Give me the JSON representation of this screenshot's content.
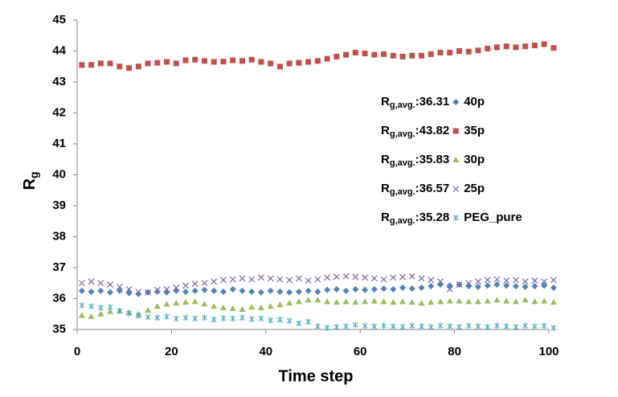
{
  "chart_data": {
    "type": "scatter",
    "xlabel": "Time step",
    "ylabel": {
      "main": "R",
      "sub": "g"
    },
    "legend_prefix": {
      "main": "R",
      "sub": "g,avg.",
      "sep": ":"
    },
    "xlim": [
      0,
      100
    ],
    "xticks": [
      0,
      20,
      40,
      60,
      80,
      100
    ],
    "ylim": [
      35,
      45
    ],
    "yticks": [
      35,
      36,
      37,
      38,
      39,
      40,
      41,
      42,
      43,
      44,
      45
    ],
    "grid": false,
    "x": [
      1,
      3,
      5,
      7,
      9,
      11,
      13,
      15,
      17,
      19,
      21,
      23,
      25,
      27,
      29,
      31,
      33,
      35,
      37,
      39,
      41,
      43,
      45,
      47,
      49,
      51,
      53,
      55,
      57,
      59,
      61,
      63,
      65,
      67,
      69,
      71,
      73,
      75,
      77,
      79,
      81,
      83,
      85,
      87,
      89,
      91,
      93,
      95,
      97,
      99,
      101
    ],
    "series": [
      {
        "name": "40p",
        "avg": 36.31,
        "color": "#4f81bd",
        "marker": "diamond",
        "values": [
          36.25,
          36.22,
          36.25,
          36.2,
          36.25,
          36.18,
          36.15,
          36.2,
          36.22,
          36.2,
          36.25,
          36.22,
          36.25,
          36.28,
          36.25,
          36.22,
          36.3,
          36.25,
          36.22,
          36.2,
          36.25,
          36.22,
          36.2,
          36.22,
          36.25,
          36.22,
          36.28,
          36.3,
          36.25,
          36.3,
          36.28,
          36.3,
          36.32,
          36.3,
          36.35,
          36.32,
          36.35,
          36.4,
          36.45,
          36.42,
          36.45,
          36.4,
          36.38,
          36.42,
          36.45,
          36.42,
          36.4,
          36.38,
          36.4,
          36.42,
          36.35
        ]
      },
      {
        "name": "35p",
        "avg": 43.82,
        "color": "#c0504d",
        "marker": "square",
        "values": [
          43.55,
          43.55,
          43.6,
          43.6,
          43.5,
          43.45,
          43.5,
          43.6,
          43.62,
          43.65,
          43.6,
          43.7,
          43.72,
          43.68,
          43.65,
          43.66,
          43.7,
          43.68,
          43.72,
          43.65,
          43.6,
          43.5,
          43.6,
          43.62,
          43.65,
          43.68,
          43.75,
          43.82,
          43.88,
          43.95,
          43.92,
          43.88,
          43.9,
          43.85,
          43.82,
          43.85,
          43.85,
          43.9,
          43.95,
          43.95,
          44.0,
          43.98,
          44.02,
          44.08,
          44.12,
          44.15,
          44.12,
          44.15,
          44.18,
          44.22,
          44.1
        ]
      },
      {
        "name": "30p",
        "avg": 35.83,
        "color": "#9bbb59",
        "marker": "triangle",
        "values": [
          35.45,
          35.42,
          35.5,
          35.58,
          35.6,
          35.55,
          35.5,
          35.62,
          35.75,
          35.82,
          35.85,
          35.88,
          35.9,
          35.82,
          35.75,
          35.7,
          35.68,
          35.65,
          35.72,
          35.7,
          35.75,
          35.8,
          35.85,
          35.9,
          35.95,
          35.95,
          35.9,
          35.88,
          35.9,
          35.88,
          35.9,
          35.92,
          35.9,
          35.88,
          35.9,
          35.88,
          35.85,
          35.88,
          35.9,
          35.92,
          35.92,
          35.9,
          35.9,
          35.92,
          35.95,
          35.92,
          35.9,
          35.95,
          35.9,
          35.92,
          35.88
        ]
      },
      {
        "name": "25p",
        "avg": 36.57,
        "color": "#8064a2",
        "marker": "cross",
        "values": [
          36.5,
          36.55,
          36.5,
          36.45,
          36.38,
          36.3,
          36.22,
          36.2,
          36.28,
          36.3,
          36.35,
          36.42,
          36.48,
          36.5,
          36.55,
          36.6,
          36.62,
          36.65,
          36.62,
          36.68,
          36.65,
          36.62,
          36.6,
          36.65,
          36.58,
          36.62,
          36.68,
          36.7,
          36.72,
          36.7,
          36.68,
          36.65,
          36.62,
          36.68,
          36.7,
          36.72,
          36.65,
          36.6,
          36.55,
          36.3,
          36.45,
          36.5,
          36.55,
          36.6,
          36.62,
          36.58,
          36.6,
          36.55,
          36.58,
          36.55,
          36.6
        ]
      },
      {
        "name": "PEG_pure",
        "avg": 35.28,
        "color": "#4bacc6",
        "marker": "asterisk",
        "values": [
          35.78,
          35.75,
          35.7,
          35.72,
          35.6,
          35.52,
          35.45,
          35.4,
          35.38,
          35.42,
          35.35,
          35.38,
          35.35,
          35.38,
          35.32,
          35.36,
          35.35,
          35.38,
          35.33,
          35.35,
          35.3,
          35.32,
          35.28,
          35.2,
          35.25,
          35.1,
          35.05,
          35.08,
          35.1,
          35.15,
          35.12,
          35.1,
          35.12,
          35.1,
          35.08,
          35.12,
          35.1,
          35.08,
          35.12,
          35.1,
          35.08,
          35.12,
          35.1,
          35.08,
          35.12,
          35.1,
          35.08,
          35.12,
          35.1,
          35.12,
          35.05
        ]
      }
    ]
  }
}
